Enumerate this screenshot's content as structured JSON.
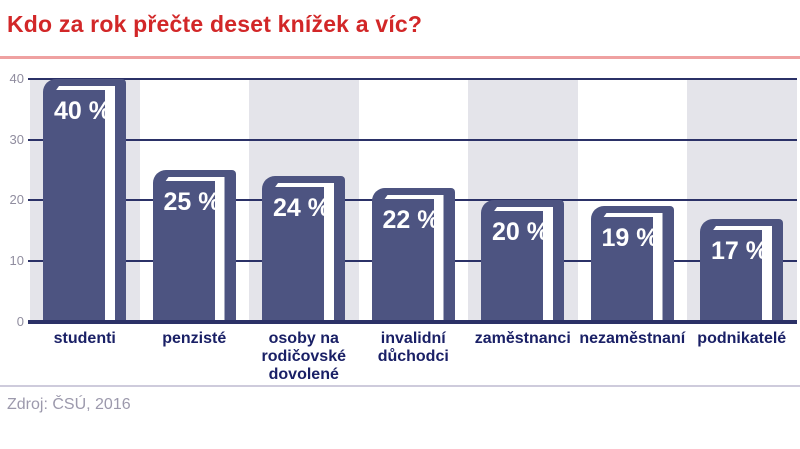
{
  "header": {
    "title": "Kdo za rok přečte deset knížek a víc?"
  },
  "chart_data": {
    "type": "bar",
    "title": "Kdo za rok přečte deset knížek a víc?",
    "categories": [
      "studenti",
      "penzisté",
      "osoby na rodičovské dovolené",
      "invalidní důchodci",
      "zaměstnanci",
      "nezaměstnaní",
      "podnikatelé"
    ],
    "values": [
      40,
      25,
      24,
      22,
      20,
      19,
      17
    ],
    "bar_labels": [
      "40 %",
      "25 %",
      "24 %",
      "22 %",
      "20 %",
      "19 %",
      "17 %"
    ],
    "xlabel": "",
    "ylabel": "",
    "ylim": [
      0,
      40
    ],
    "yticks": [
      0,
      10,
      20,
      30,
      40
    ],
    "grid": true,
    "legend": false,
    "band_pattern": "alternating columns, gray behind bars 1,3,5,7"
  },
  "footer": {
    "source": "Zdroj: ČSÚ, 2016"
  },
  "colors": {
    "title_red": "#d22728",
    "underline_pink": "#efa1a1",
    "book_navy": "#4d5481",
    "grid_navy": "#2b3167",
    "band_gray": "#e4e4ea",
    "ytick_gray": "#908d9f",
    "xlabel_navy": "#1a2066",
    "divider_lavender": "#cecbdc",
    "source_gray": "#9c99ac",
    "bar_value_white": "#ffffff"
  }
}
